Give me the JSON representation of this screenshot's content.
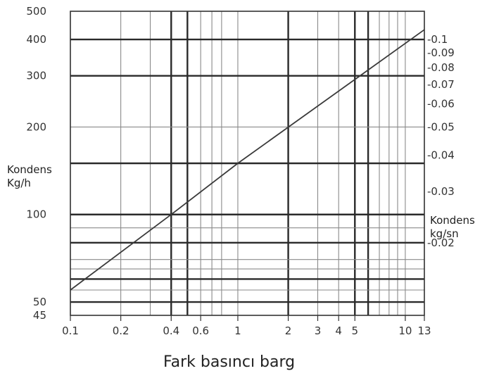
{
  "chart_data": {
    "type": "line",
    "title": "",
    "xlabel": "Fark basıncı barg",
    "ylabel": [
      "Kondens",
      "Kg/h"
    ],
    "y2label": [
      "Kondens",
      "kg/sn"
    ],
    "x_scale": "log",
    "y_scale": "log",
    "xlim": [
      0.1,
      13
    ],
    "ylim": [
      45,
      500
    ],
    "x_ticks": [
      {
        "v": 0.1,
        "label": "0.1"
      },
      {
        "v": 0.2,
        "label": "0.2"
      },
      {
        "v": 0.4,
        "label": "0.4"
      },
      {
        "v": 0.6,
        "label": "0.6"
      },
      {
        "v": 1,
        "label": "1"
      },
      {
        "v": 2,
        "label": "2"
      },
      {
        "v": 3,
        "label": "3"
      },
      {
        "v": 4,
        "label": "4"
      },
      {
        "v": 5,
        "label": "5"
      },
      {
        "v": 10,
        "label": "10"
      },
      {
        "v": 13,
        "label": "13"
      }
    ],
    "x_grid": [
      0.1,
      0.2,
      0.3,
      0.4,
      0.5,
      0.6,
      0.7,
      0.8,
      1,
      2,
      3,
      4,
      5,
      6,
      7,
      8,
      9,
      10,
      13
    ],
    "x_grid_bold": [
      0.4,
      0.5,
      2,
      5,
      6
    ],
    "y_ticks": [
      {
        "v": 45,
        "label": "45"
      },
      {
        "v": 50,
        "label": "50"
      },
      {
        "v": 100,
        "label": "100"
      },
      {
        "v": 200,
        "label": "200"
      },
      {
        "v": 300,
        "label": "300"
      },
      {
        "v": 400,
        "label": "400"
      },
      {
        "v": 500,
        "label": "500"
      }
    ],
    "y_grid": [
      45,
      50,
      55,
      60,
      65,
      70,
      80,
      90,
      100,
      150,
      200,
      300,
      400,
      500
    ],
    "y_grid_bold": [
      50,
      60,
      80,
      100,
      150,
      300,
      400
    ],
    "y2_ticks": [
      {
        "v": 0.02,
        "label": "-0.02"
      },
      {
        "v": 0.03,
        "label": "-0.03"
      },
      {
        "v": 0.04,
        "label": "-0.04"
      },
      {
        "v": 0.05,
        "label": "-0.05"
      },
      {
        "v": 0.06,
        "label": "-0.06"
      },
      {
        "v": 0.07,
        "label": "-0.07"
      },
      {
        "v": 0.08,
        "label": "-0.08"
      },
      {
        "v": 0.09,
        "label": "-0.09"
      },
      {
        "v": 0.1,
        "label": "-0.1"
      }
    ],
    "series": [
      {
        "x": [
          0.1,
          0.4,
          1,
          13
        ],
        "y": [
          55,
          100,
          150,
          432
        ]
      }
    ]
  }
}
